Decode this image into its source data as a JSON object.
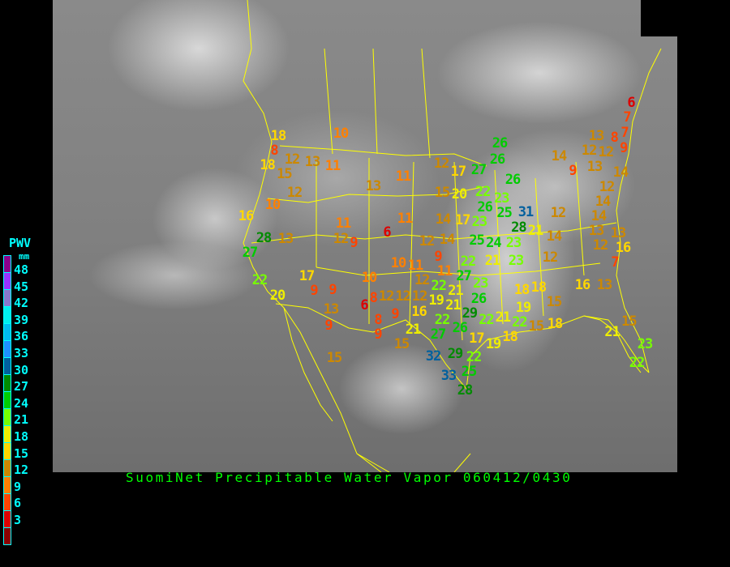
{
  "caption": "SuomiNet Precipitable Water Vapor 060412/0430",
  "legend": {
    "title": "PWV",
    "unit": "mm",
    "labels": [
      "48",
      "45",
      "42",
      "39",
      "36",
      "33",
      "30",
      "27",
      "24",
      "21",
      "18",
      "15",
      "12",
      "9",
      "6",
      "3"
    ],
    "colors": [
      "#8b008b",
      "#9933ff",
      "#8877cc",
      "#00eeee",
      "#00bbee",
      "#1e90ff",
      "#00609e",
      "#008b00",
      "#00cc00",
      "#77ff00",
      "#eeee00",
      "#ffd700",
      "#cc8800",
      "#ff8000",
      "#ff4400",
      "#dd0000",
      "#8b0000"
    ]
  },
  "map": {
    "boundary_color": "#ffff00",
    "background": "satellite water vapor imagery"
  },
  "stations": [
    "18",
    "8",
    "18",
    "12",
    "13",
    "11",
    "10",
    "15",
    "12",
    "13",
    "11",
    "10",
    "16",
    "28",
    "13",
    "27",
    "11",
    "12",
    "9",
    "6",
    "11",
    "22",
    "20",
    "17",
    "9",
    "9",
    "13",
    "9",
    "15",
    "10",
    "8",
    "6",
    "9",
    "8",
    "9",
    "12",
    "15",
    "12",
    "17",
    "27",
    "26",
    "26",
    "26",
    "15",
    "20",
    "22",
    "23",
    "14",
    "17",
    "23",
    "26",
    "25",
    "31",
    "28",
    "21",
    "12",
    "14",
    "25",
    "24",
    "23",
    "10",
    "11",
    "9",
    "11",
    "27",
    "22",
    "21",
    "23",
    "12",
    "22",
    "21",
    "23",
    "12",
    "12",
    "19",
    "21",
    "26",
    "16",
    "22",
    "29",
    "22",
    "21",
    "22",
    "21",
    "27",
    "26",
    "17",
    "19",
    "18",
    "32",
    "29",
    "22",
    "33",
    "25",
    "28",
    "18",
    "18",
    "19",
    "15",
    "18",
    "14",
    "13",
    "12",
    "12",
    "13",
    "8",
    "9",
    "6",
    "7",
    "7",
    "9",
    "14",
    "12",
    "14",
    "12",
    "14",
    "13",
    "14",
    "12",
    "13",
    "16",
    "12",
    "7",
    "16",
    "13",
    "15",
    "15",
    "21",
    "23",
    "22"
  ]
}
